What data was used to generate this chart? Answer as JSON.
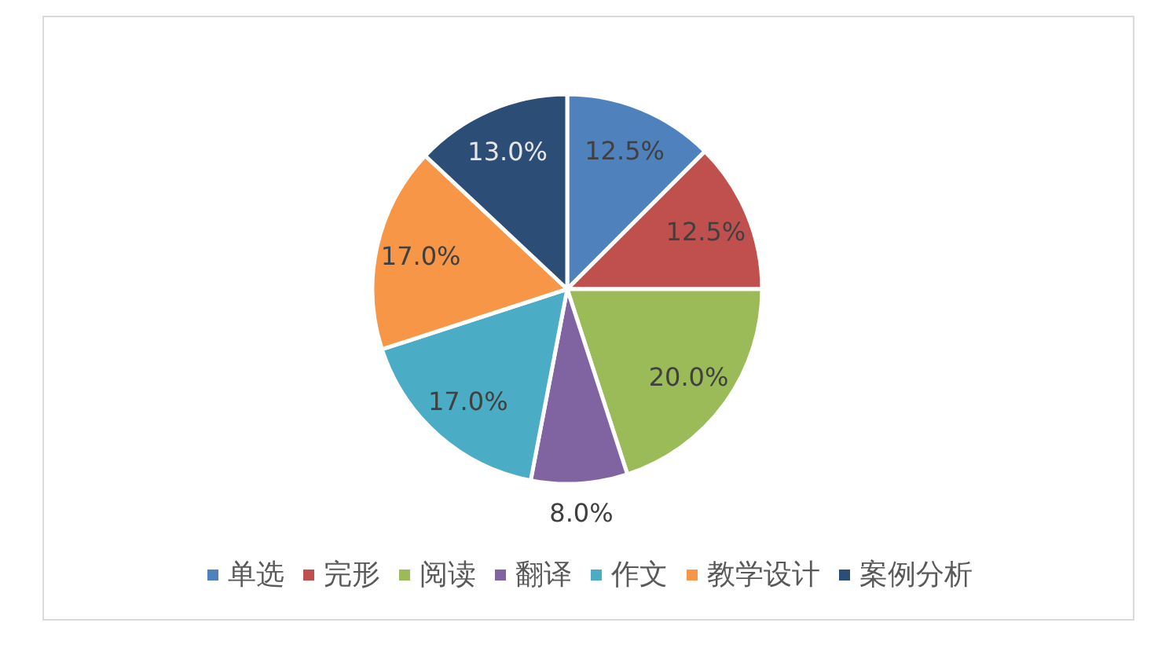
{
  "chart_data": {
    "type": "pie",
    "categories": [
      "单选",
      "完形",
      "阅读",
      "翻译",
      "作文",
      "教学设计",
      "案例分析"
    ],
    "values": [
      12.5,
      12.5,
      20.0,
      8.0,
      17.0,
      17.0,
      13.0
    ],
    "colors": [
      "#4f81bd",
      "#c0504d",
      "#9bbb59",
      "#8064a2",
      "#4bacc6",
      "#f79646",
      "#2c4d75"
    ],
    "value_labels": [
      "12.5%",
      "12.5%",
      "20.0%",
      "8.0%",
      "17.0%",
      "17.0%",
      "13.0%"
    ],
    "legend": "bottom"
  }
}
